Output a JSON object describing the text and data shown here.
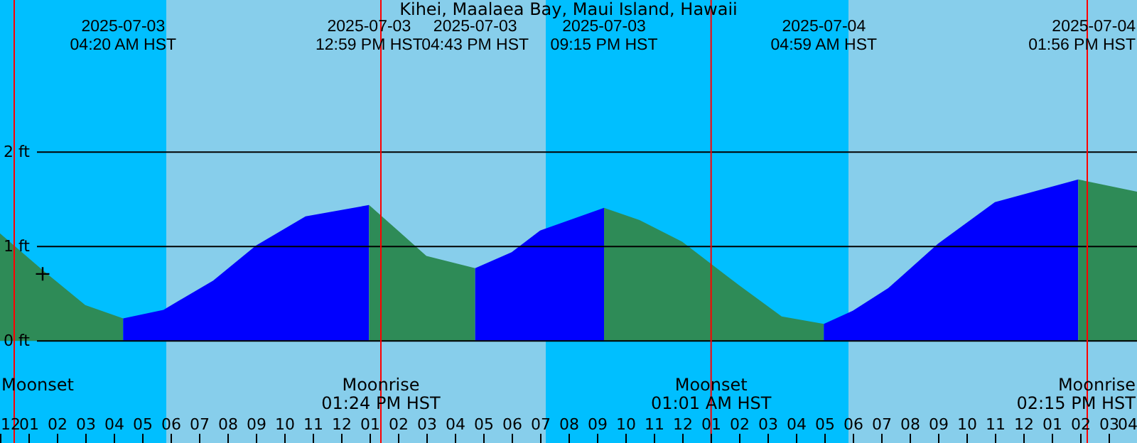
{
  "chart_data": {
    "type": "area",
    "title": "Kihei, Maalaea Bay, Maui Island, Hawaii",
    "series": [
      {
        "color": "#2e8b57",
        "x": [
          "2025-07-03T00:00",
          "2025-07-03T01:30",
          "2025-07-03T03:00",
          "2025-07-03T04:20"
        ],
        "values": [
          1.14,
          0.75,
          0.38,
          0.24
        ]
      },
      {
        "color": "#0000ff",
        "x": [
          "2025-07-03T04:20",
          "2025-07-03T05:45",
          "2025-07-03T07:30",
          "2025-07-03T09:00",
          "2025-07-03T10:45",
          "2025-07-03T12:59"
        ],
        "values": [
          0.24,
          0.33,
          0.64,
          1.01,
          1.32,
          1.44
        ]
      },
      {
        "color": "#2e8b57",
        "x": [
          "2025-07-03T12:59",
          "2025-07-03T14:00",
          "2025-07-03T15:00",
          "2025-07-03T16:43"
        ],
        "values": [
          1.44,
          1.17,
          0.9,
          0.77
        ]
      },
      {
        "color": "#0000ff",
        "x": [
          "2025-07-03T16:43",
          "2025-07-03T18:00",
          "2025-07-03T19:00",
          "2025-07-03T21:15"
        ],
        "values": [
          0.77,
          0.94,
          1.17,
          1.41
        ]
      },
      {
        "color": "#2e8b57",
        "x": [
          "2025-07-03T21:15",
          "2025-07-03T22:30",
          "2025-07-04T00:00",
          "2025-07-04T02:00",
          "2025-07-04T03:30",
          "2025-07-04T04:59"
        ],
        "values": [
          1.41,
          1.28,
          1.05,
          0.59,
          0.26,
          0.18
        ]
      },
      {
        "color": "#0000ff",
        "x": [
          "2025-07-04T04:59",
          "2025-07-04T06:00",
          "2025-07-04T07:15",
          "2025-07-04T09:00",
          "2025-07-04T11:00",
          "2025-07-04T13:56"
        ],
        "values": [
          0.18,
          0.32,
          0.56,
          1.03,
          1.47,
          1.71
        ]
      },
      {
        "color": "#2e8b57",
        "x": [
          "2025-07-04T13:56",
          "2025-07-04T16:00"
        ],
        "values": [
          1.71,
          1.58
        ]
      },
      {
        "type": "scatter",
        "marker": "cross",
        "color": "#000000",
        "x": [
          "2025-07-03T01:30"
        ],
        "values": [
          0.71
        ]
      }
    ],
    "xlim": [
      "2025-07-03T00:00",
      "2025-07-04T16:00"
    ],
    "xticks": [
      {
        "value": "2025-07-03T00:00",
        "label": "12"
      },
      {
        "value": "2025-07-03T01:00",
        "label": "01"
      },
      {
        "value": "2025-07-03T02:00",
        "label": "02"
      },
      {
        "value": "2025-07-03T03:00",
        "label": "03"
      },
      {
        "value": "2025-07-03T04:00",
        "label": "04"
      },
      {
        "value": "2025-07-03T05:00",
        "label": "05"
      },
      {
        "value": "2025-07-03T06:00",
        "label": "06"
      },
      {
        "value": "2025-07-03T07:00",
        "label": "07"
      },
      {
        "value": "2025-07-03T08:00",
        "label": "08"
      },
      {
        "value": "2025-07-03T09:00",
        "label": "09"
      },
      {
        "value": "2025-07-03T10:00",
        "label": "10"
      },
      {
        "value": "2025-07-03T11:00",
        "label": "11"
      },
      {
        "value": "2025-07-03T12:00",
        "label": "12"
      },
      {
        "value": "2025-07-03T13:00",
        "label": "01"
      },
      {
        "value": "2025-07-03T14:00",
        "label": "02"
      },
      {
        "value": "2025-07-03T15:00",
        "label": "03"
      },
      {
        "value": "2025-07-03T16:00",
        "label": "04"
      },
      {
        "value": "2025-07-03T17:00",
        "label": "05"
      },
      {
        "value": "2025-07-03T18:00",
        "label": "06"
      },
      {
        "value": "2025-07-03T19:00",
        "label": "07"
      },
      {
        "value": "2025-07-03T20:00",
        "label": "08"
      },
      {
        "value": "2025-07-03T21:00",
        "label": "09"
      },
      {
        "value": "2025-07-03T22:00",
        "label": "10"
      },
      {
        "value": "2025-07-03T23:00",
        "label": "11"
      },
      {
        "value": "2025-07-04T00:00",
        "label": "12"
      },
      {
        "value": "2025-07-04T01:00",
        "label": "01"
      },
      {
        "value": "2025-07-04T02:00",
        "label": "02"
      },
      {
        "value": "2025-07-04T03:00",
        "label": "03"
      },
      {
        "value": "2025-07-04T04:00",
        "label": "04"
      },
      {
        "value": "2025-07-04T05:00",
        "label": "05"
      },
      {
        "value": "2025-07-04T06:00",
        "label": "06"
      },
      {
        "value": "2025-07-04T07:00",
        "label": "07"
      },
      {
        "value": "2025-07-04T08:00",
        "label": "08"
      },
      {
        "value": "2025-07-04T09:00",
        "label": "09"
      },
      {
        "value": "2025-07-04T10:00",
        "label": "10"
      },
      {
        "value": "2025-07-04T11:00",
        "label": "11"
      },
      {
        "value": "2025-07-04T12:00",
        "label": "12"
      },
      {
        "value": "2025-07-04T13:00",
        "label": "01"
      },
      {
        "value": "2025-07-04T14:00",
        "label": "02"
      },
      {
        "value": "2025-07-04T15:00",
        "label": "03"
      },
      {
        "value": "2025-07-04T16:00",
        "label": "04"
      }
    ],
    "x2lim": [
      "2025-07-03T00:00",
      "2025-07-04T16:00"
    ],
    "x2ticks": [
      {
        "value": "2025-07-03T04:20",
        "label": "2025-07-03\n04:20 AM HST"
      },
      {
        "value": "2025-07-03T12:59",
        "label": "2025-07-03\n12:59 PM HST"
      },
      {
        "value": "2025-07-03T16:43",
        "label": "2025-07-03\n04:43 PM HST"
      },
      {
        "value": "2025-07-03T21:15",
        "label": "2025-07-03\n09:15 PM HST"
      },
      {
        "value": "2025-07-04T04:59",
        "label": "2025-07-04\n04:59 AM HST"
      },
      {
        "value": "2025-07-04T13:56",
        "label": "2025-07-04\n01:56 PM HST"
      }
    ],
    "ylim": [
      -1.08,
      3.61
    ],
    "yticks": [
      {
        "value": 0,
        "label": "0 ft"
      },
      {
        "value": 1,
        "label": "1 ft"
      },
      {
        "value": 2,
        "label": "2 ft"
      }
    ],
    "grid": "y",
    "bands": [
      {
        "axis": "x",
        "from": "2025-07-03T00:00",
        "to": "2025-07-03T05:51",
        "color": "#00bfff"
      },
      {
        "axis": "x",
        "from": "2025-07-03T05:51",
        "to": "2025-07-03T19:12",
        "color": "#87ceeb"
      },
      {
        "axis": "x",
        "from": "2025-07-03T19:12",
        "to": "2025-07-04T05:51",
        "color": "#00bfff"
      },
      {
        "axis": "x",
        "from": "2025-07-04T05:51",
        "to": "2025-07-04T16:00",
        "color": "#87ceeb"
      }
    ],
    "ref_lines": [
      {
        "axis": "x",
        "value": "2025-07-03T00:30",
        "label": "Moonset",
        "color": "#ff0000"
      },
      {
        "axis": "x",
        "value": "2025-07-03T13:24",
        "label": "Moonrise\n01:24 PM HST",
        "color": "#ff0000"
      },
      {
        "axis": "x",
        "value": "2025-07-04T01:01",
        "label": "Moonset\n01:01 AM HST",
        "color": "#ff0000"
      },
      {
        "axis": "x",
        "value": "2025-07-04T14:15",
        "label": "Moonrise\n02:15 PM HST",
        "color": "#ff0000"
      }
    ]
  }
}
